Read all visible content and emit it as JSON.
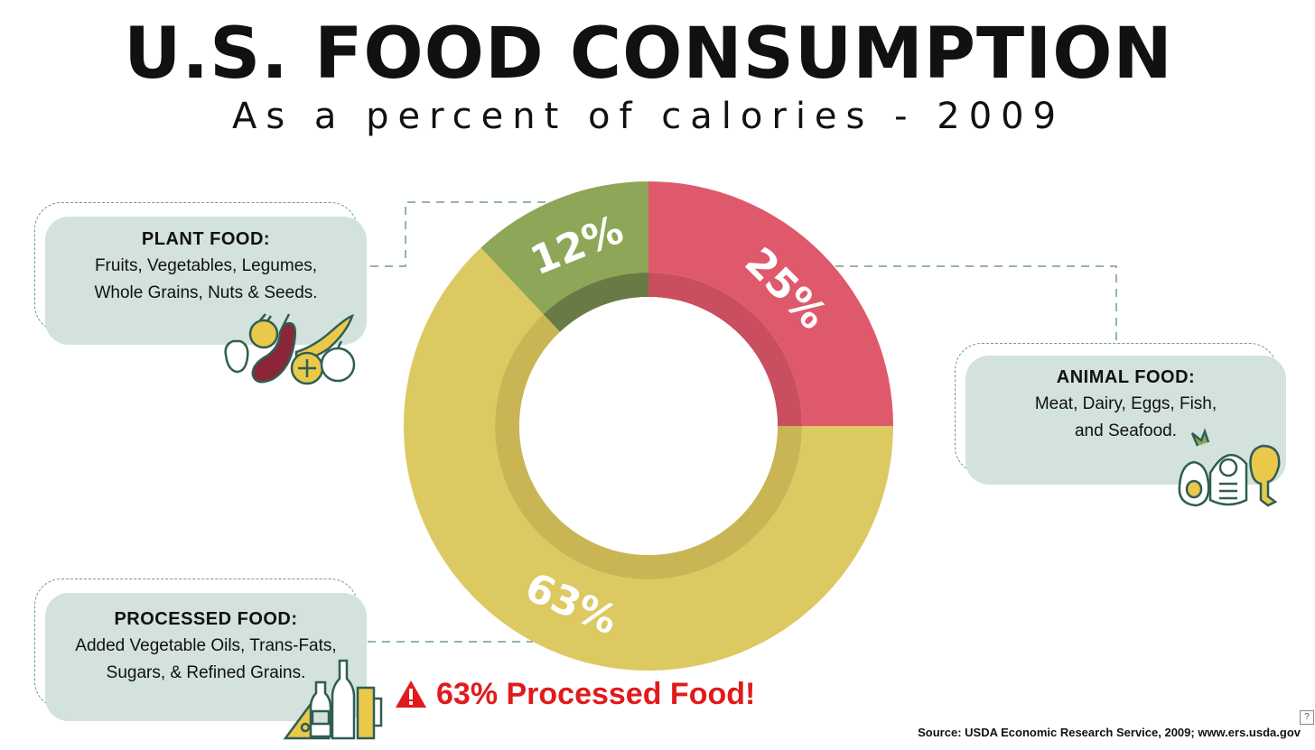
{
  "header": {
    "title": "U.S. FOOD CONSUMPTION",
    "subtitle": "As a percent of calories - 2009"
  },
  "chart_data": {
    "type": "donut",
    "title": "U.S. FOOD CONSUMPTION",
    "subtitle": "As a percent of calories - 2009",
    "slices": [
      {
        "name": "Animal Food",
        "value": 25,
        "label": "25%",
        "color": "#df596c",
        "inner_color": "#c94e60"
      },
      {
        "name": "Processed Food",
        "value": 63,
        "label": "63%",
        "color": "#dcc962",
        "inner_color": "#c9b553"
      },
      {
        "name": "Plant Food",
        "value": 12,
        "label": "12%",
        "color": "#8da657",
        "inner_color": "#6a7a44"
      }
    ]
  },
  "cards": {
    "plant": {
      "title": "PLANT FOOD:",
      "description": "Fruits, Vegetables, Legumes,\nWhole Grains, Nuts & Seeds."
    },
    "animal": {
      "title": "ANIMAL FOOD:",
      "description": "Meat, Dairy, Eggs, Fish,\nand Seafood."
    },
    "processed": {
      "title": "PROCESSED FOOD:",
      "description": "Added Vegetable Oils, Trans-Fats,\nSugars, & Refined Grains."
    }
  },
  "warning": {
    "text": "63% Processed Food!",
    "icon": "warning-icon",
    "color": "#e11b1b"
  },
  "footer": {
    "source": "Source: USDA Economic Research Service, 2009; www.ers.usda.gov",
    "help": "?"
  },
  "icons": {
    "plant": "fruits-vegetables-icon",
    "animal": "egg-fish-meat-icon",
    "processed": "bottles-cheese-beer-icon"
  }
}
